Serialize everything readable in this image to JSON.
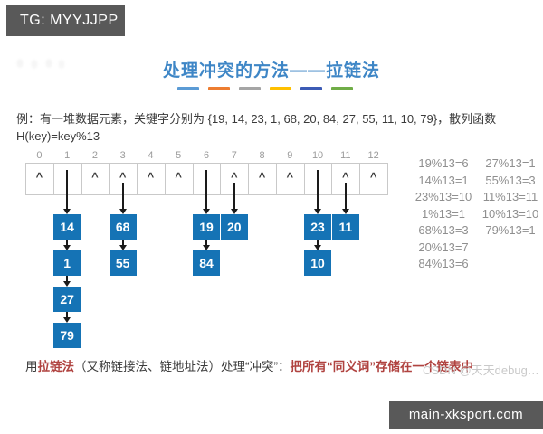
{
  "badge_top_left": {
    "label": "TG: MYYJJPP"
  },
  "title": {
    "text": "处理冲突的方法——拉链法"
  },
  "divider_colors": [
    "#5b9bd5",
    "#ed7d31",
    "#a5a5a5",
    "#ffc000",
    "#3c5bb5",
    "#70ad47"
  ],
  "example": {
    "line1": "例：有一堆数据元素，关键字分别为 {19, 14, 23, 1, 68, 20, 84, 27, 55, 11, 10, 79}，散列函数",
    "line2": "H(key)=key%13"
  },
  "diagram": {
    "null_symbol": "^",
    "node_color": "#1573b5",
    "slots": [
      {
        "index": "0",
        "empty": true
      },
      {
        "index": "1",
        "chain": [
          "14",
          "1",
          "27",
          "79"
        ],
        "shows_null_marker": false
      },
      {
        "index": "2",
        "empty": true
      },
      {
        "index": "3",
        "chain": [
          "68",
          "55"
        ],
        "shows_null_marker": true
      },
      {
        "index": "4",
        "empty": true
      },
      {
        "index": "5",
        "empty": true
      },
      {
        "index": "6",
        "chain": [
          "19",
          "84"
        ],
        "shows_null_marker": false
      },
      {
        "index": "7",
        "chain": [
          "20"
        ],
        "shows_null_marker": true
      },
      {
        "index": "8",
        "empty": true
      },
      {
        "index": "9",
        "empty": true
      },
      {
        "index": "10",
        "chain": [
          "23",
          "10"
        ],
        "shows_null_marker": false
      },
      {
        "index": "11",
        "chain": [
          "11"
        ],
        "shows_null_marker": true
      },
      {
        "index": "12",
        "empty": true
      }
    ]
  },
  "calculations": {
    "column1": [
      "19%13=6",
      "14%13=1",
      "23%13=10",
      "1%13=1",
      "68%13=3",
      "20%13=7",
      "84%13=6"
    ],
    "column2": [
      "27%13=1",
      "55%13=3",
      "11%13=11",
      "10%13=10",
      "79%13=1"
    ]
  },
  "footer": {
    "segments": [
      {
        "text": "用",
        "color": "#3b3b3b"
      },
      {
        "text": "拉链法",
        "color": "#b04340",
        "bold": true
      },
      {
        "text": "（又称链接法、链地址法）处理“冲突”：",
        "color": "#3b3b3b"
      },
      {
        "text": "把所有“同义词”存储在一个链表中",
        "color": "#b04340",
        "bold": true
      }
    ],
    "watermark": "CSDN @天天debug…"
  },
  "badge_bottom_right": {
    "label": "main-xksport.com"
  }
}
